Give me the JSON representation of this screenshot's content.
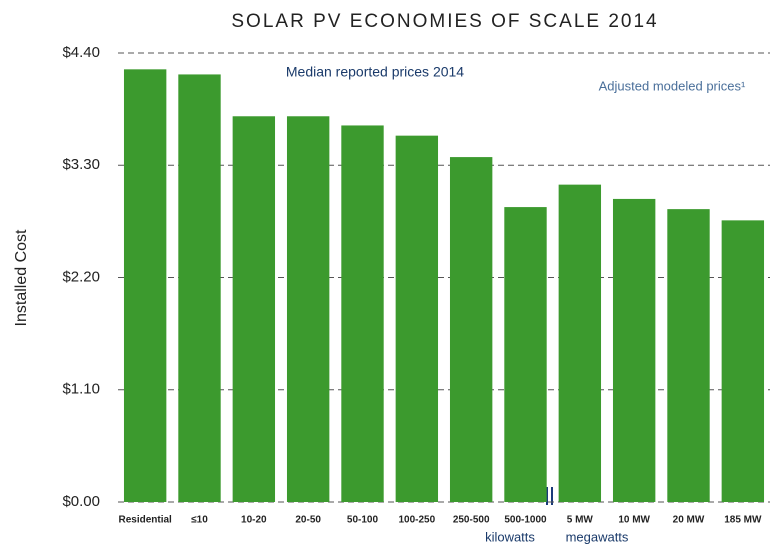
{
  "chart_data": {
    "type": "bar",
    "title": "SOLAR PV ECONOMIES OF SCALE 2014",
    "y_label": "Installed Cost",
    "annotations": [
      "Median reported prices 2014",
      "Adjusted modeled prices¹"
    ],
    "unit_labels": [
      "kilowatts",
      "megawatts"
    ],
    "categories": [
      "Residential",
      "≤10",
      "10-20",
      "20-50",
      "50-100",
      "100-250",
      "250-500",
      "500-1000",
      "5 MW",
      "10 MW",
      "20 MW",
      "185 MW"
    ],
    "values": [
      4.24,
      4.19,
      3.78,
      3.78,
      3.69,
      3.59,
      3.38,
      2.89,
      3.11,
      2.97,
      2.87,
      2.76
    ],
    "color": "#3c9a2e",
    "ylim": [
      0,
      4.4
    ],
    "yticks": [
      {
        "value": 0,
        "label": "$0.00"
      },
      {
        "value": 1.1,
        "label": "$1.10"
      },
      {
        "value": 2.2,
        "label": "$2.20"
      },
      {
        "value": 3.3,
        "label": "$3.30"
      },
      {
        "value": 4.4,
        "label": "$4.40"
      }
    ],
    "grid": true
  }
}
